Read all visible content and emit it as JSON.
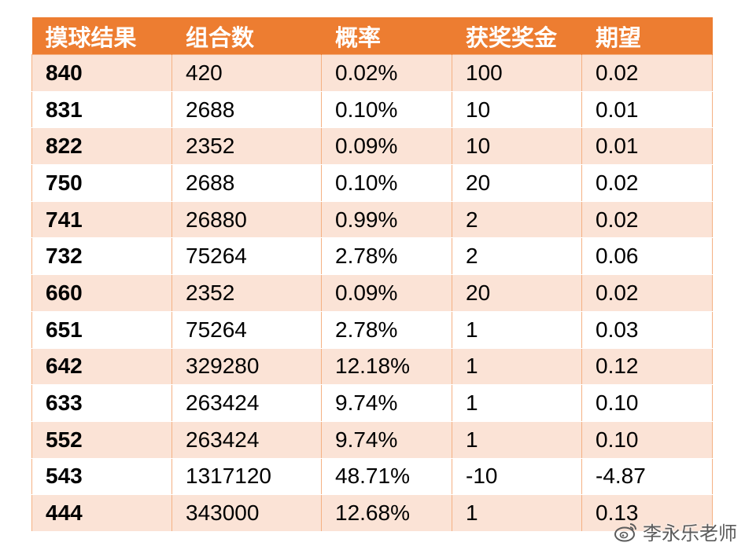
{
  "table": {
    "headers": [
      "摸球结果",
      "组合数",
      "概率",
      "获奖奖金",
      "期望"
    ],
    "rows": [
      [
        "840",
        "420",
        "0.02%",
        "100",
        "0.02"
      ],
      [
        "831",
        "2688",
        "0.10%",
        "10",
        "0.01"
      ],
      [
        "822",
        "2352",
        "0.09%",
        "10",
        "0.01"
      ],
      [
        "750",
        "2688",
        "0.10%",
        "20",
        "0.02"
      ],
      [
        "741",
        "26880",
        "0.99%",
        "2",
        "0.02"
      ],
      [
        "732",
        "75264",
        "2.78%",
        "2",
        "0.06"
      ],
      [
        "660",
        "2352",
        "0.09%",
        "20",
        "0.02"
      ],
      [
        "651",
        "75264",
        "2.78%",
        "1",
        "0.03"
      ],
      [
        "642",
        "329280",
        "12.18%",
        "1",
        "0.12"
      ],
      [
        "633",
        "263424",
        "9.74%",
        "1",
        "0.10"
      ],
      [
        "552",
        "263424",
        "9.74%",
        "1",
        "0.10"
      ],
      [
        "543",
        "1317120",
        "48.71%",
        "-10",
        "-4.87"
      ],
      [
        "444",
        "343000",
        "12.68%",
        "1",
        "0.13"
      ]
    ]
  },
  "colors": {
    "header_bg": "#ed7d31",
    "band_bg": "#fbe3d6",
    "border": "#f4b183"
  },
  "watermark": {
    "icon": "weibo-icon",
    "text": "李永乐老师"
  }
}
